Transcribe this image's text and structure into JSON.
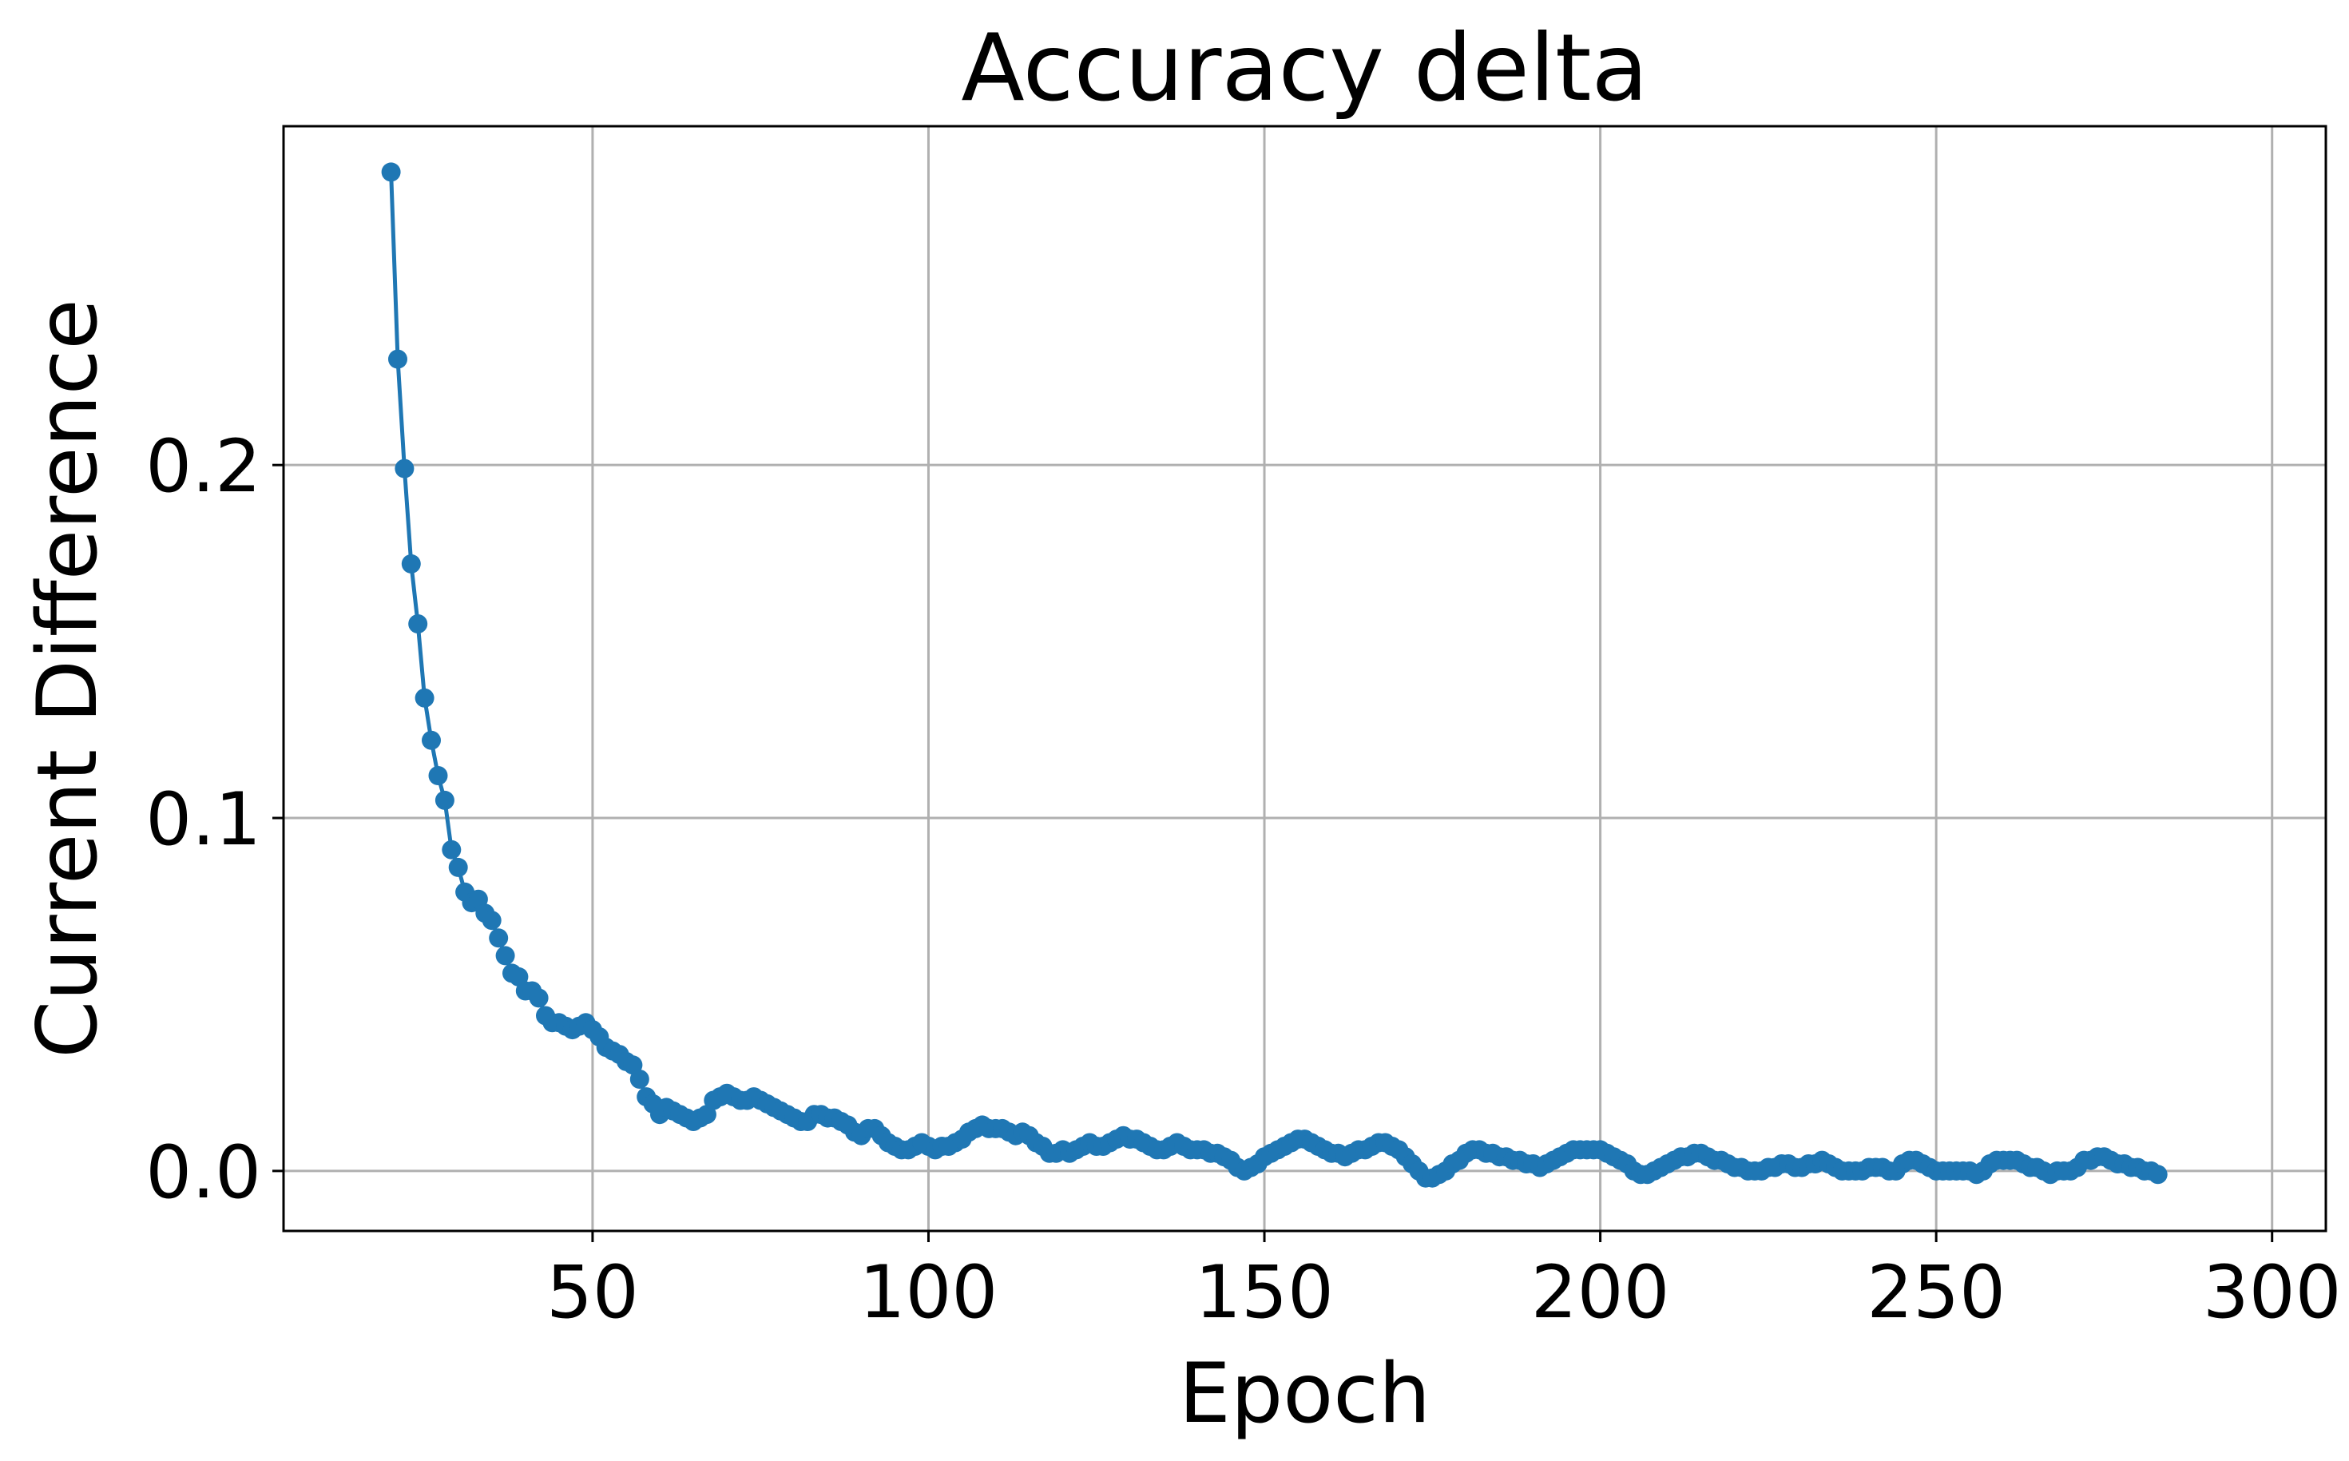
{
  "chart_data": {
    "type": "line",
    "title": "Accuracy delta",
    "xlabel": "Epoch",
    "ylabel": "Current Difference",
    "xlim": [
      4,
      308
    ],
    "ylim": [
      -0.017,
      0.296
    ],
    "xticks": [
      50,
      100,
      150,
      200,
      250,
      300
    ],
    "yticks": [
      0.0,
      0.1,
      0.2
    ],
    "ytick_labels": [
      "0.0",
      "0.1",
      "0.2"
    ],
    "grid": true,
    "legend": false,
    "series": [
      {
        "color": "#1f77b4",
        "marker": "circle",
        "x_start": 20,
        "x_step": 1,
        "values": [
          0.283,
          0.23,
          0.199,
          0.172,
          0.155,
          0.134,
          0.122,
          0.112,
          0.105,
          0.091,
          0.086,
          0.079,
          0.076,
          0.077,
          0.073,
          0.071,
          0.066,
          0.061,
          0.056,
          0.055,
          0.051,
          0.051,
          0.049,
          0.044,
          0.042,
          0.042,
          0.041,
          0.04,
          0.041,
          0.042,
          0.04,
          0.038,
          0.035,
          0.034,
          0.033,
          0.031,
          0.03,
          0.026,
          0.021,
          0.019,
          0.016,
          0.018,
          0.017,
          0.016,
          0.015,
          0.014,
          0.015,
          0.016,
          0.02,
          0.021,
          0.022,
          0.021,
          0.02,
          0.02,
          0.021,
          0.02,
          0.019,
          0.018,
          0.017,
          0.016,
          0.015,
          0.014,
          0.014,
          0.016,
          0.016,
          0.015,
          0.015,
          0.014,
          0.013,
          0.011,
          0.01,
          0.012,
          0.012,
          0.01,
          0.008,
          0.007,
          0.006,
          0.006,
          0.007,
          0.008,
          0.007,
          0.006,
          0.007,
          0.007,
          0.008,
          0.009,
          0.011,
          0.012,
          0.013,
          0.012,
          0.012,
          0.012,
          0.011,
          0.01,
          0.011,
          0.01,
          0.008,
          0.007,
          0.005,
          0.005,
          0.006,
          0.005,
          0.006,
          0.007,
          0.008,
          0.007,
          0.007,
          0.008,
          0.009,
          0.01,
          0.009,
          0.009,
          0.008,
          0.007,
          0.006,
          0.006,
          0.007,
          0.008,
          0.007,
          0.006,
          0.006,
          0.006,
          0.005,
          0.005,
          0.004,
          0.003,
          0.001,
          0.0,
          0.001,
          0.002,
          0.004,
          0.005,
          0.006,
          0.007,
          0.008,
          0.009,
          0.009,
          0.008,
          0.007,
          0.006,
          0.005,
          0.005,
          0.004,
          0.005,
          0.006,
          0.006,
          0.007,
          0.008,
          0.008,
          0.007,
          0.006,
          0.004,
          0.002,
          0.0,
          -0.002,
          -0.002,
          -0.001,
          0.0,
          0.002,
          0.003,
          0.005,
          0.006,
          0.006,
          0.005,
          0.005,
          0.004,
          0.004,
          0.003,
          0.003,
          0.002,
          0.002,
          0.001,
          0.002,
          0.003,
          0.004,
          0.005,
          0.006,
          0.006,
          0.006,
          0.006,
          0.006,
          0.005,
          0.004,
          0.003,
          0.002,
          0.0,
          -0.001,
          -0.001,
          0.0,
          0.001,
          0.002,
          0.003,
          0.004,
          0.004,
          0.005,
          0.005,
          0.004,
          0.003,
          0.003,
          0.002,
          0.001,
          0.001,
          0.0,
          0.0,
          0.0,
          0.001,
          0.001,
          0.002,
          0.002,
          0.001,
          0.001,
          0.002,
          0.002,
          0.003,
          0.002,
          0.001,
          0.0,
          0.0,
          0.0,
          0.0,
          0.001,
          0.001,
          0.001,
          0.0,
          0.0,
          0.002,
          0.003,
          0.003,
          0.002,
          0.001,
          0.0,
          0.0,
          0.0,
          0.0,
          0.0,
          0.0,
          -0.001,
          0.0,
          0.002,
          0.003,
          0.003,
          0.003,
          0.003,
          0.002,
          0.001,
          0.001,
          0.0,
          -0.001,
          0.0,
          0.0,
          0.0,
          0.001,
          0.003,
          0.003,
          0.004,
          0.004,
          0.003,
          0.002,
          0.002,
          0.001,
          0.001,
          0.0,
          0.0,
          -0.001
        ]
      }
    ]
  }
}
